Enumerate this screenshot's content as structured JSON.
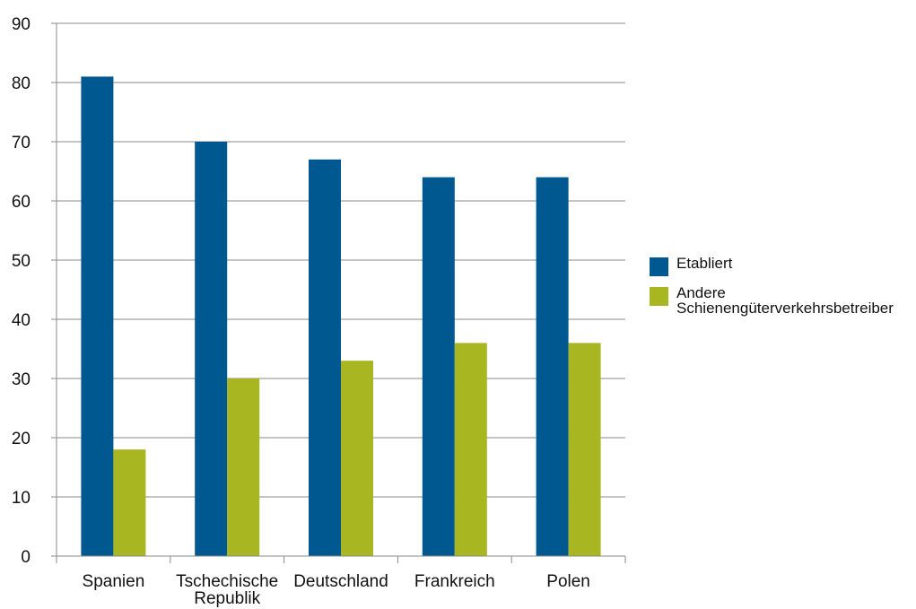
{
  "chart_data": {
    "type": "bar",
    "title": "",
    "xlabel": "",
    "ylabel": "",
    "categories": [
      "Spanien",
      "Tschechische Republik",
      "Deutschland",
      "Frankreich",
      "Polen"
    ],
    "ylim": [
      0,
      90
    ],
    "yticks": [
      0,
      10,
      20,
      30,
      40,
      50,
      60,
      70,
      80,
      90
    ],
    "grid": true,
    "legend_position": "right",
    "series": [
      {
        "name": "Etabliert",
        "color": "#005891",
        "values": [
          81,
          70,
          67,
          64,
          64
        ]
      },
      {
        "name": "Andere\nSchienengüterverkehrsbetreiber",
        "color": "#a8b622",
        "values": [
          18,
          30,
          33,
          36,
          36
        ]
      }
    ]
  }
}
